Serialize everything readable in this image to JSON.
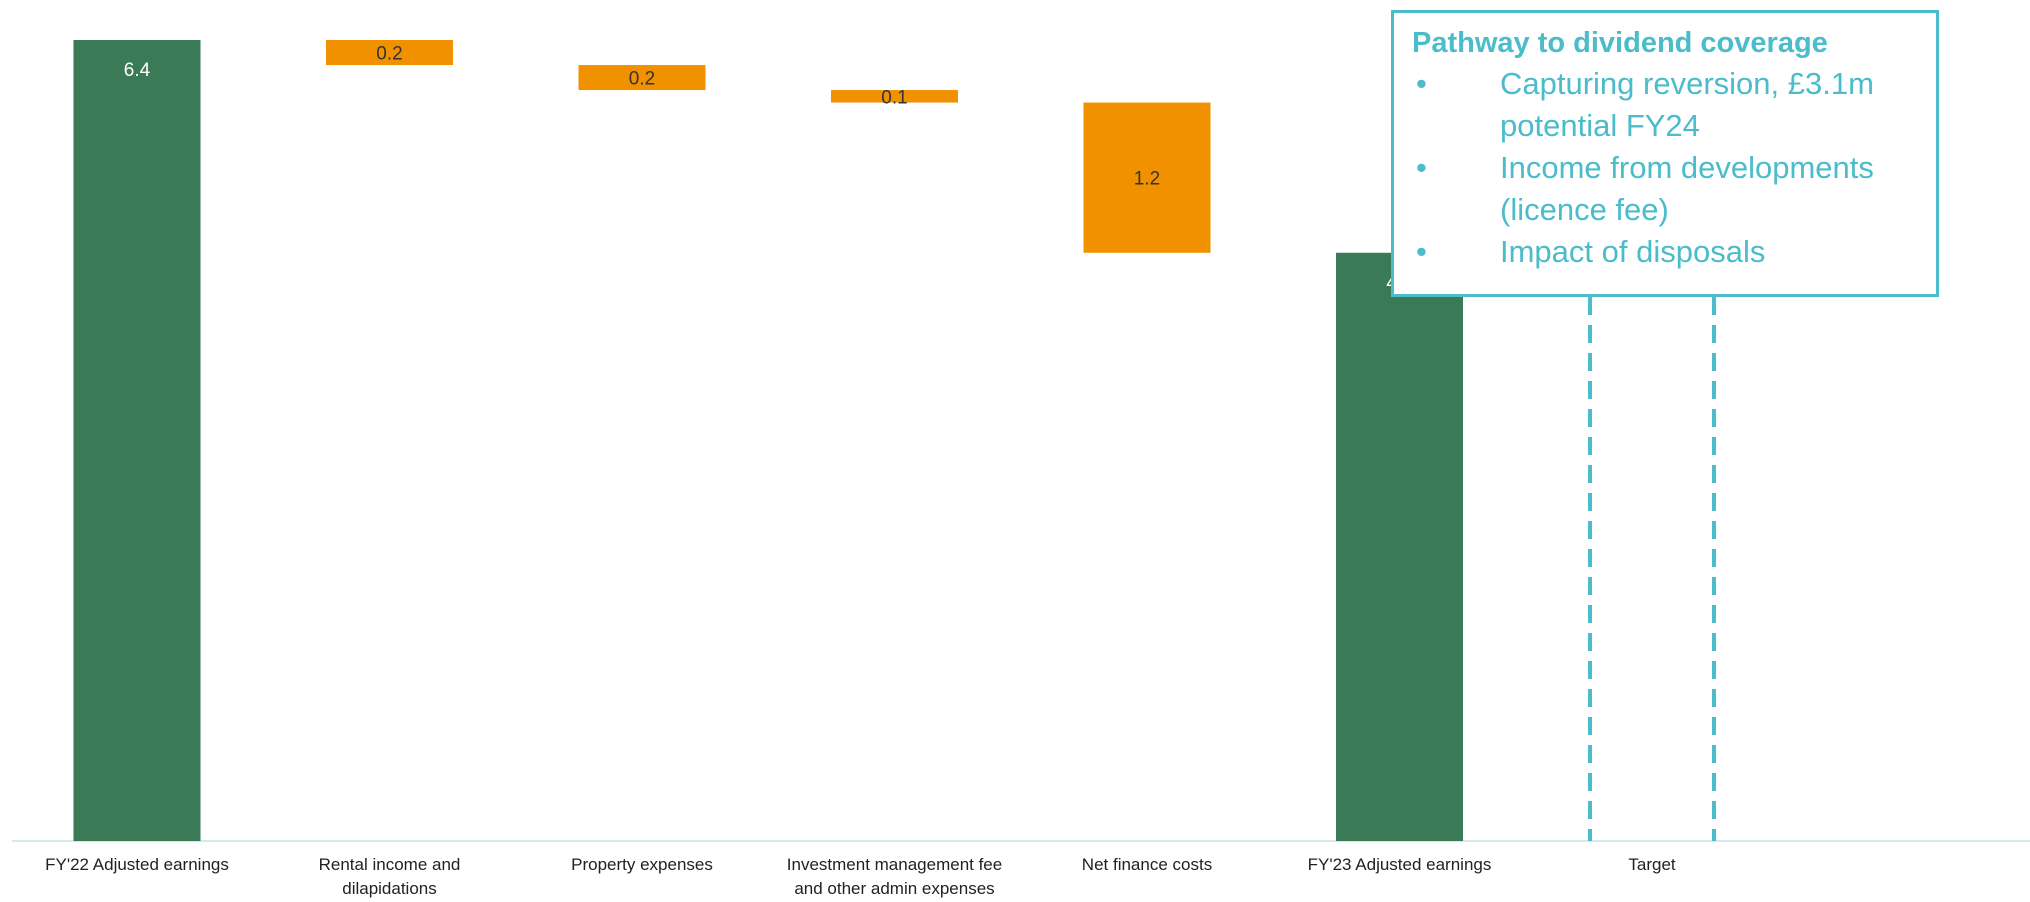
{
  "colors": {
    "total": "#3a7a56",
    "decrease": "#f29100",
    "accent": "#4bbcca",
    "total_text": "#ffffff",
    "decrease_text": "#333333"
  },
  "callout": {
    "title": "Pathway to dividend coverage",
    "items": [
      "Capturing reversion, £3.1m potential FY24",
      "Income from developments (licence fee)",
      "Impact of disposals"
    ]
  },
  "chart_data": {
    "type": "bar",
    "subtype": "waterfall",
    "categories": [
      [
        "FY'22 Adjusted earnings"
      ],
      [
        "Rental income and",
        "dilapidations"
      ],
      [
        "Property expenses"
      ],
      [
        "Investment management fee",
        "and other admin expenses"
      ],
      [
        "Net finance costs"
      ],
      [
        "FY'23 Adjusted earnings"
      ],
      [
        "Target"
      ]
    ],
    "bars": [
      {
        "kind": "total",
        "value": 6.4,
        "label": "6.4"
      },
      {
        "kind": "decrease",
        "value": 0.2,
        "label": "0.2"
      },
      {
        "kind": "decrease",
        "value": 0.2,
        "label": "0.2"
      },
      {
        "kind": "decrease",
        "value": 0.1,
        "label": "0.1"
      },
      {
        "kind": "decrease",
        "value": 1.2,
        "label": "1.2"
      },
      {
        "kind": "total",
        "value": 4.7,
        "label": "4.7"
      },
      {
        "kind": "target",
        "value": null,
        "label": ""
      }
    ],
    "title": "",
    "xlabel": "",
    "ylabel": "",
    "ylim": [
      0,
      6.4
    ],
    "grid": false,
    "legend": "none"
  }
}
